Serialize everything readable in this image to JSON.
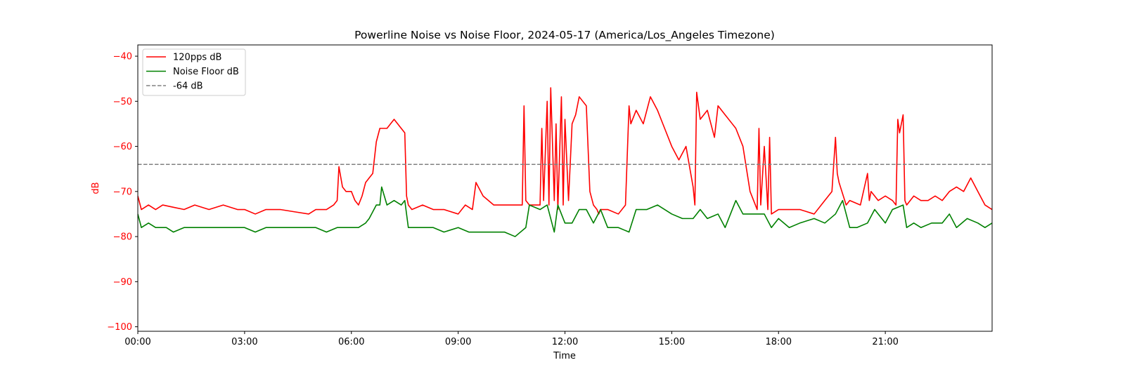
{
  "chart_data": {
    "type": "line",
    "title": "Powerline Noise vs Noise Floor, 2024-05-17 (America/Los_Angeles Timezone)",
    "xlabel": "Time",
    "ylabel": "dB",
    "x_unit": "hours",
    "xlim": [
      0,
      24
    ],
    "ylim": [
      -101,
      -37.5
    ],
    "x_ticks": [
      {
        "value": 0,
        "label": "00:00"
      },
      {
        "value": 3,
        "label": "03:00"
      },
      {
        "value": 6,
        "label": "06:00"
      },
      {
        "value": 9,
        "label": "09:00"
      },
      {
        "value": 12,
        "label": "12:00"
      },
      {
        "value": 15,
        "label": "15:00"
      },
      {
        "value": 18,
        "label": "18:00"
      },
      {
        "value": 21,
        "label": "21:00"
      }
    ],
    "y_ticks": [
      {
        "value": -40,
        "label": "−40"
      },
      {
        "value": -50,
        "label": "−50"
      },
      {
        "value": -60,
        "label": "−60"
      },
      {
        "value": -70,
        "label": "−70"
      },
      {
        "value": -80,
        "label": "−80"
      },
      {
        "value": -90,
        "label": "−90"
      },
      {
        "value": -100,
        "label": "−100"
      }
    ],
    "y_tick_color": "#ff0000",
    "ylabel_color": "#ff0000",
    "grid": false,
    "legend_position": "top-left",
    "series": [
      {
        "name": "120pps dB",
        "color": "#ff0000",
        "style": "solid",
        "x": [
          0,
          0.1,
          0.3,
          0.5,
          0.7,
          1.0,
          1.3,
          1.6,
          2.0,
          2.4,
          2.8,
          3.0,
          3.3,
          3.6,
          4.0,
          4.4,
          4.8,
          5.0,
          5.3,
          5.5,
          5.6,
          5.65,
          5.75,
          5.85,
          6.0,
          6.1,
          6.2,
          6.3,
          6.4,
          6.5,
          6.6,
          6.7,
          6.8,
          7.0,
          7.2,
          7.4,
          7.5,
          7.55,
          7.6,
          7.7,
          8.0,
          8.3,
          8.6,
          9.0,
          9.2,
          9.4,
          9.5,
          9.7,
          10.0,
          10.3,
          10.6,
          10.8,
          10.85,
          10.9,
          11.0,
          11.2,
          11.3,
          11.35,
          11.4,
          11.5,
          11.55,
          11.6,
          11.7,
          11.75,
          11.8,
          11.9,
          11.95,
          12.0,
          12.1,
          12.2,
          12.3,
          12.4,
          12.5,
          12.6,
          12.7,
          12.8,
          12.9,
          12.95,
          13.0,
          13.2,
          13.5,
          13.7,
          13.8,
          13.85,
          14.0,
          14.2,
          14.4,
          14.6,
          14.8,
          15.0,
          15.2,
          15.4,
          15.6,
          15.65,
          15.7,
          15.8,
          16.0,
          16.1,
          16.2,
          16.3,
          16.5,
          16.7,
          16.8,
          17.0,
          17.2,
          17.4,
          17.45,
          17.5,
          17.6,
          17.7,
          17.75,
          17.8,
          18.0,
          18.3,
          18.6,
          19.0,
          19.3,
          19.5,
          19.6,
          19.65,
          19.7,
          19.9,
          20.0,
          20.3,
          20.5,
          20.55,
          20.6,
          20.8,
          21.0,
          21.2,
          21.3,
          21.35,
          21.4,
          21.5,
          21.55,
          21.6,
          21.8,
          22.0,
          22.2,
          22.4,
          22.6,
          22.8,
          23.0,
          23.2,
          23.4,
          23.6,
          23.8,
          24.0
        ],
        "y": [
          -71,
          -74,
          -73,
          -74,
          -73,
          -73.5,
          -74,
          -73,
          -74,
          -73,
          -74,
          -74,
          -75,
          -74,
          -74,
          -74.5,
          -75,
          -74,
          -74,
          -73,
          -72,
          -64.5,
          -69,
          -70,
          -70,
          -72,
          -73,
          -71,
          -68,
          -67,
          -66,
          -59,
          -56,
          -56,
          -54,
          -56,
          -57,
          -71,
          -73,
          -74,
          -73,
          -74,
          -74,
          -75,
          -73,
          -74,
          -68,
          -71,
          -73,
          -73,
          -73,
          -73,
          -51,
          -72,
          -73,
          -73,
          -73,
          -56,
          -72,
          -50,
          -73,
          -47,
          -72,
          -55,
          -74,
          -49,
          -73,
          -54,
          -72,
          -55,
          -53,
          -49,
          -50,
          -51,
          -70,
          -73,
          -74,
          -75,
          -74,
          -74,
          -75,
          -73,
          -51,
          -55,
          -52,
          -55,
          -49,
          -52,
          -56,
          -60,
          -63,
          -60,
          -69,
          -73,
          -48,
          -54,
          -52,
          -55,
          -58,
          -51,
          -53,
          -55,
          -56,
          -60,
          -70,
          -74,
          -56,
          -73,
          -60,
          -74,
          -58,
          -75,
          -74,
          -74,
          -74,
          -75,
          -72,
          -70,
          -58,
          -66,
          -68,
          -73,
          -72,
          -73,
          -66,
          -72,
          -70,
          -72,
          -71,
          -72,
          -73,
          -54,
          -57,
          -53,
          -72,
          -73,
          -71,
          -72,
          -72,
          -71,
          -72,
          -70,
          -69,
          -70,
          -67,
          -70,
          -73,
          -74
        ]
      },
      {
        "name": "Noise Floor dB",
        "color": "#008000",
        "style": "solid",
        "x": [
          0,
          0.1,
          0.3,
          0.5,
          0.8,
          1.0,
          1.3,
          1.6,
          2.0,
          2.4,
          2.8,
          3.0,
          3.3,
          3.6,
          4.0,
          4.4,
          4.8,
          5.0,
          5.3,
          5.6,
          6.0,
          6.2,
          6.4,
          6.5,
          6.7,
          6.8,
          6.85,
          7.0,
          7.2,
          7.4,
          7.5,
          7.6,
          8.0,
          8.3,
          8.6,
          9.0,
          9.3,
          9.6,
          10.0,
          10.3,
          10.6,
          10.9,
          11.0,
          11.3,
          11.5,
          11.7,
          11.8,
          12.0,
          12.2,
          12.4,
          12.6,
          12.8,
          13.0,
          13.2,
          13.5,
          13.8,
          14.0,
          14.3,
          14.6,
          15.0,
          15.3,
          15.6,
          15.8,
          16.0,
          16.3,
          16.5,
          16.8,
          17.0,
          17.3,
          17.6,
          17.8,
          18.0,
          18.3,
          18.6,
          19.0,
          19.3,
          19.6,
          19.8,
          20.0,
          20.2,
          20.5,
          20.7,
          21.0,
          21.2,
          21.5,
          21.6,
          21.8,
          22.0,
          22.3,
          22.6,
          22.8,
          23.0,
          23.3,
          23.6,
          23.8,
          24.0
        ],
        "y": [
          -75,
          -78,
          -77,
          -78,
          -78,
          -79,
          -78,
          -78,
          -78,
          -78,
          -78,
          -78,
          -79,
          -78,
          -78,
          -78,
          -78,
          -78,
          -79,
          -78,
          -78,
          -78,
          -77,
          -76,
          -73,
          -73,
          -69,
          -73,
          -72,
          -73,
          -72,
          -78,
          -78,
          -78,
          -79,
          -78,
          -79,
          -79,
          -79,
          -79,
          -80,
          -78,
          -73,
          -74,
          -73,
          -79,
          -73,
          -77,
          -77,
          -74,
          -74,
          -77,
          -74,
          -78,
          -78,
          -79,
          -74,
          -74,
          -73,
          -75,
          -76,
          -76,
          -74,
          -76,
          -75,
          -78,
          -72,
          -75,
          -75,
          -75,
          -78,
          -76,
          -78,
          -77,
          -76,
          -77,
          -75,
          -72,
          -78,
          -78,
          -77,
          -74,
          -77,
          -74,
          -73,
          -78,
          -77,
          -78,
          -77,
          -77,
          -75,
          -78,
          -76,
          -77,
          -78,
          -77
        ]
      },
      {
        "name": "-64 dB",
        "color": "#808080",
        "style": "dashed",
        "x": [
          0,
          24
        ],
        "y": [
          -64,
          -64
        ]
      }
    ]
  }
}
